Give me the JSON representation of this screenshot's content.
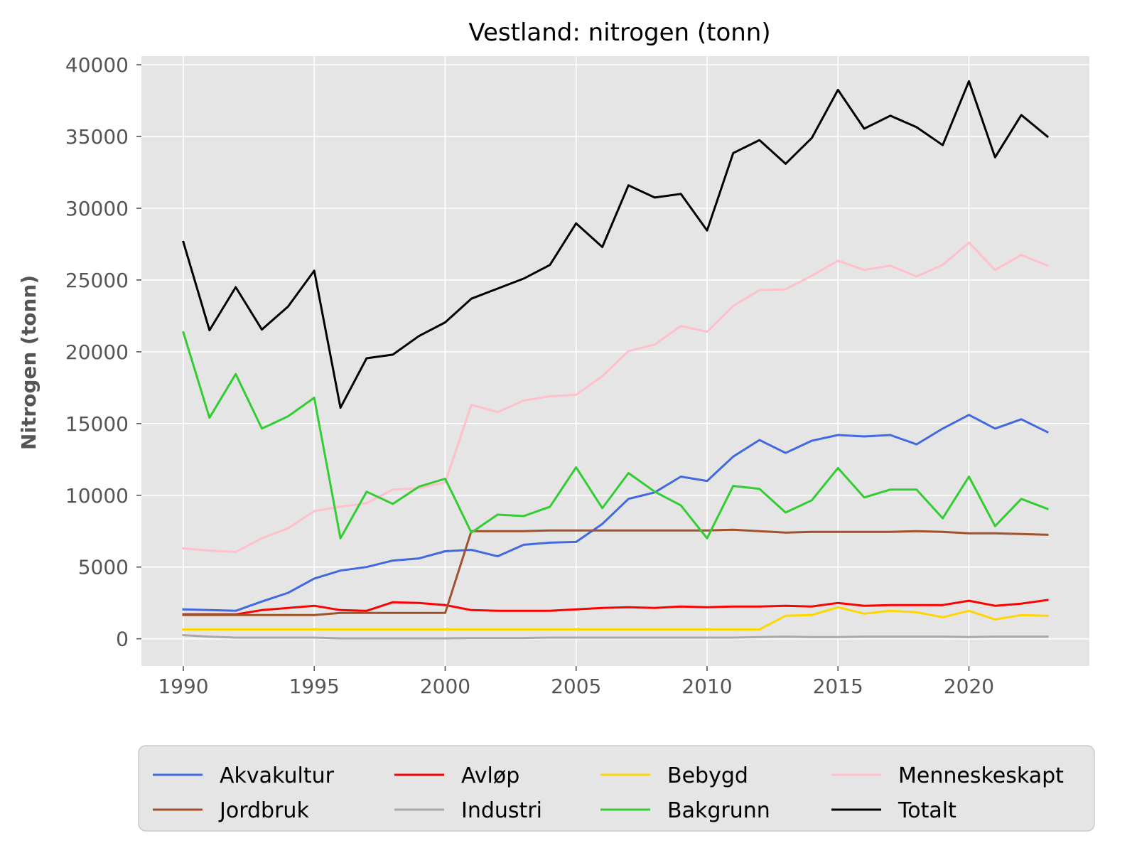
{
  "chart_data": {
    "type": "line",
    "title": "Vestland: nitrogen (tonn)",
    "xlabel": "",
    "ylabel": "Nitrogen (tonn)",
    "xlim": [
      1988.4,
      2024.6
    ],
    "ylim": [
      -1900,
      40600
    ],
    "xticks": [
      1990,
      1995,
      2000,
      2005,
      2010,
      2015,
      2020
    ],
    "yticks": [
      0,
      5000,
      10000,
      15000,
      20000,
      25000,
      30000,
      35000,
      40000
    ],
    "grid": true,
    "legend_position": "bottom, outside plot",
    "x": [
      1990,
      1991,
      1992,
      1993,
      1994,
      1995,
      1996,
      1997,
      1998,
      1999,
      2000,
      2001,
      2002,
      2003,
      2004,
      2005,
      2006,
      2007,
      2008,
      2009,
      2010,
      2011,
      2012,
      2013,
      2014,
      2015,
      2016,
      2017,
      2018,
      2019,
      2020,
      2021,
      2022,
      2023
    ],
    "series": [
      {
        "name": "Akvakultur",
        "color": "#4169e1",
        "values": [
          2050,
          2000,
          1950,
          2600,
          3200,
          4200,
          4750,
          5000,
          5450,
          5600,
          6100,
          6200,
          5750,
          6550,
          6700,
          6750,
          8000,
          9750,
          10200,
          11300,
          11000,
          12700,
          13850,
          12950,
          13800,
          14200,
          14100,
          14200,
          13550,
          14650,
          15600,
          14650,
          15300,
          14400
        ]
      },
      {
        "name": "Avløp",
        "color": "#ff0000",
        "values": [
          1700,
          1700,
          1700,
          2000,
          2150,
          2300,
          2000,
          1950,
          2550,
          2500,
          2350,
          2000,
          1950,
          1950,
          1950,
          2050,
          2150,
          2200,
          2150,
          2250,
          2200,
          2250,
          2250,
          2300,
          2250,
          2500,
          2300,
          2350,
          2350,
          2350,
          2650,
          2300,
          2450,
          2700
        ]
      },
      {
        "name": "Bebygd",
        "color": "#ffd700",
        "values": [
          650,
          650,
          650,
          650,
          650,
          650,
          650,
          650,
          650,
          650,
          650,
          650,
          650,
          650,
          650,
          650,
          650,
          650,
          650,
          650,
          650,
          650,
          650,
          1600,
          1650,
          2200,
          1750,
          1950,
          1850,
          1500,
          1950,
          1350,
          1650,
          1600
        ]
      },
      {
        "name": "Menneskeskapt",
        "color": "#ffc0cb",
        "values": [
          6300,
          6150,
          6050,
          7000,
          7700,
          8900,
          9200,
          9450,
          10400,
          10500,
          10900,
          16300,
          15800,
          16600,
          16900,
          17000,
          18300,
          20050,
          20500,
          21800,
          21400,
          23200,
          24300,
          24350,
          25300,
          26350,
          25700,
          26000,
          25250,
          26050,
          27600,
          25700,
          26750,
          26000
        ]
      },
      {
        "name": "Jordbruk",
        "color": "#a0522d",
        "values": [
          1650,
          1650,
          1650,
          1650,
          1650,
          1650,
          1800,
          1800,
          1800,
          1800,
          1800,
          7500,
          7500,
          7500,
          7550,
          7550,
          7550,
          7550,
          7550,
          7550,
          7550,
          7600,
          7500,
          7400,
          7450,
          7450,
          7450,
          7450,
          7500,
          7450,
          7350,
          7350,
          7300,
          7250
        ]
      },
      {
        "name": "Industri",
        "color": "#a9a9a9",
        "values": [
          250,
          150,
          80,
          80,
          80,
          80,
          30,
          30,
          30,
          30,
          30,
          50,
          50,
          50,
          80,
          80,
          80,
          80,
          80,
          80,
          80,
          80,
          120,
          150,
          120,
          120,
          150,
          150,
          150,
          150,
          120,
          150,
          150,
          150
        ]
      },
      {
        "name": "Bakgrunn",
        "color": "#32cd32",
        "values": [
          21350,
          15400,
          18450,
          14650,
          15500,
          16800,
          7000,
          10250,
          9400,
          10600,
          11150,
          7400,
          8650,
          8550,
          9200,
          11950,
          9100,
          11550,
          10250,
          9300,
          7000,
          10650,
          10450,
          8800,
          9650,
          11900,
          9850,
          10400,
          10400,
          8400,
          11300,
          7850,
          9750,
          9050
        ]
      },
      {
        "name": "Totalt",
        "color": "#000000",
        "values": [
          27650,
          21500,
          24500,
          21550,
          23150,
          25650,
          16100,
          19550,
          19800,
          21100,
          22050,
          23700,
          24400,
          25100,
          26050,
          28950,
          27300,
          31600,
          30750,
          31000,
          28450,
          33850,
          34750,
          33100,
          34900,
          38250,
          35550,
          36450,
          35650,
          34400,
          38850,
          33550,
          36500,
          35000
        ]
      }
    ],
    "legend_order": [
      "Akvakultur",
      "Avløp",
      "Bebygd",
      "Menneskeskapt",
      "Jordbruk",
      "Industri",
      "Bakgrunn",
      "Totalt"
    ],
    "plot_bg": "#e5e5e5",
    "grid_color": "#ffffff"
  }
}
